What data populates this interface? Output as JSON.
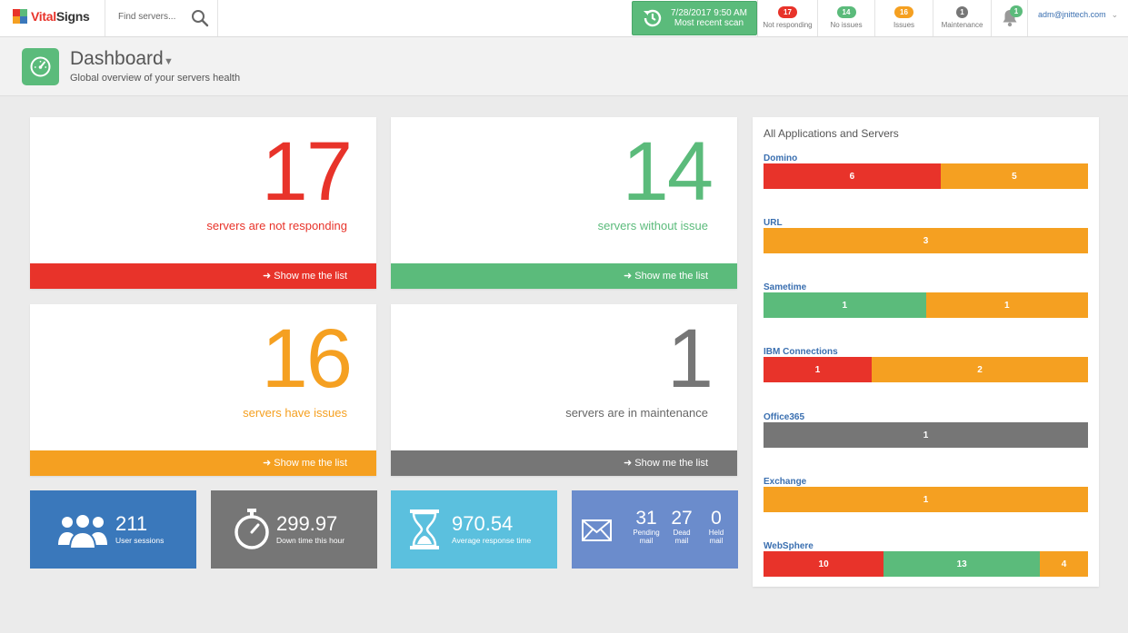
{
  "app": {
    "brand_a": "Vital",
    "brand_b": "Signs"
  },
  "search": {
    "placeholder": "Find servers..."
  },
  "scan": {
    "date": "7/28/2017 9:50 AM",
    "label": "Most recent scan"
  },
  "stats": [
    {
      "count": "17",
      "label": "Not responding",
      "color": "#e8332a"
    },
    {
      "count": "14",
      "label": "No issues",
      "color": "#5bbb7b"
    },
    {
      "count": "16",
      "label": "Issues",
      "color": "#f5a021"
    },
    {
      "count": "1",
      "label": "Maintenance",
      "color": "#767676"
    }
  ],
  "notifications": {
    "count": "1"
  },
  "user": {
    "email": "adm@jnittech.com"
  },
  "header": {
    "title": "Dashboard",
    "subtitle": "Global overview of your servers health"
  },
  "cards": [
    {
      "number": "17",
      "desc_a": "servers are not responding",
      "desc_b": "",
      "color": "#e8332a",
      "foot": "Show me the list"
    },
    {
      "number": "14",
      "desc_a": "servers ",
      "desc_b": "without issue",
      "color": "#5bbb7b",
      "foot": "Show me the list"
    },
    {
      "number": "16",
      "desc_a": "servers ",
      "desc_b": "have issues",
      "color": "#f5a021",
      "foot": "Show me the list"
    },
    {
      "number": "1",
      "desc_a": "servers are in maintenance",
      "desc_b": "",
      "color": "#767676",
      "foot": "Show me the list"
    }
  ],
  "tiles": {
    "sessions": {
      "value": "211",
      "label": "User sessions"
    },
    "downtime": {
      "value": "299.97",
      "label": "Down time this hour"
    },
    "response": {
      "value": "970.54",
      "label": "Average response time"
    },
    "mail": {
      "pending": {
        "value": "31",
        "label1": "Pending",
        "label2": "mail"
      },
      "dead": {
        "value": "27",
        "label1": "Dead",
        "label2": "mail"
      },
      "held": {
        "value": "0",
        "label1": "Held",
        "label2": "mail"
      }
    }
  },
  "panel": {
    "title": "All Applications and Servers",
    "apps": [
      {
        "name": "Domino",
        "segments": [
          {
            "value": "6",
            "status": "red"
          },
          {
            "value": "5",
            "status": "orange"
          }
        ]
      },
      {
        "name": "URL",
        "segments": [
          {
            "value": "3",
            "status": "orange"
          }
        ]
      },
      {
        "name": "Sametime",
        "segments": [
          {
            "value": "1",
            "status": "green"
          },
          {
            "value": "1",
            "status": "orange"
          }
        ]
      },
      {
        "name": "IBM Connections",
        "segments": [
          {
            "value": "1",
            "status": "red"
          },
          {
            "value": "2",
            "status": "orange"
          }
        ]
      },
      {
        "name": "Office365",
        "segments": [
          {
            "value": "1",
            "status": "gray"
          }
        ]
      },
      {
        "name": "Exchange",
        "segments": [
          {
            "value": "1",
            "status": "orange"
          }
        ]
      },
      {
        "name": "WebSphere",
        "segments": [
          {
            "value": "10",
            "status": "red"
          },
          {
            "value": "13",
            "status": "green"
          },
          {
            "value": "4",
            "status": "orange"
          }
        ]
      }
    ]
  },
  "colors": {
    "red": "#e8332a",
    "green": "#5bbb7b",
    "orange": "#f5a021",
    "gray": "#767676",
    "blue": "#3a78bb",
    "darkgray": "#767676",
    "cyan": "#5bc0de",
    "slate": "#6b8ccc"
  }
}
